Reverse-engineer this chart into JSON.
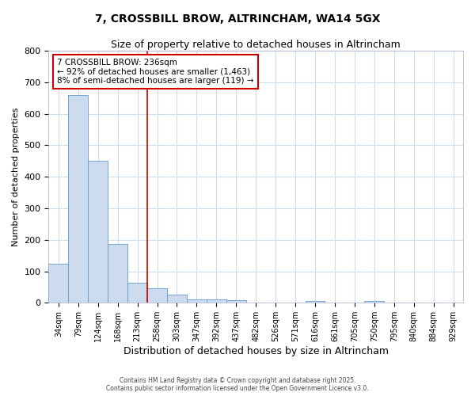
{
  "title1": "7, CROSSBILL BROW, ALTRINCHAM, WA14 5GX",
  "title2": "Size of property relative to detached houses in Altrincham",
  "xlabel": "Distribution of detached houses by size in Altrincham",
  "ylabel": "Number of detached properties",
  "bar_color": "#ccdcee",
  "bar_edge_color": "#6699cc",
  "background_color": "#ffffff",
  "grid_color": "#ccddee",
  "categories": [
    "34sqm",
    "79sqm",
    "124sqm",
    "168sqm",
    "213sqm",
    "258sqm",
    "303sqm",
    "347sqm",
    "392sqm",
    "437sqm",
    "482sqm",
    "526sqm",
    "571sqm",
    "616sqm",
    "661sqm",
    "705sqm",
    "750sqm",
    "795sqm",
    "840sqm",
    "884sqm",
    "929sqm"
  ],
  "values": [
    125,
    660,
    450,
    187,
    63,
    45,
    27,
    12,
    12,
    8,
    0,
    0,
    0,
    6,
    0,
    0,
    5,
    0,
    0,
    0,
    0
  ],
  "ylim": [
    0,
    800
  ],
  "yticks": [
    0,
    100,
    200,
    300,
    400,
    500,
    600,
    700,
    800
  ],
  "vline_x_idx": 4.5,
  "vline_color": "#cc0000",
  "annotation_text": "7 CROSSBILL BROW: 236sqm\n← 92% of detached houses are smaller (1,463)\n8% of semi-detached houses are larger (119) →",
  "annotation_box_color": "#ffffff",
  "annotation_box_edge": "#cc0000",
  "footer1": "Contains HM Land Registry data © Crown copyright and database right 2025.",
  "footer2": "Contains public sector information licensed under the Open Government Licence v3.0."
}
